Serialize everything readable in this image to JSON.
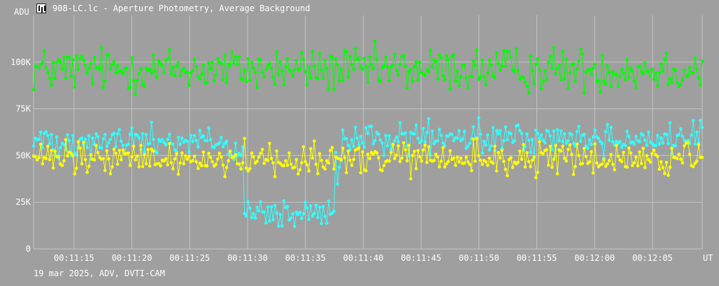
{
  "window": {
    "title": "908-LC.lc - Aperture Photometry, Average Background",
    "icon": "lightcurve-app-icon"
  },
  "footer": {
    "caption": "19 mar 2025, ADV, DVTI-CAM"
  },
  "colors": {
    "background": "#9f9f9f",
    "grid": "#c4c4c4",
    "text": "#ffffff",
    "green": "#00ff00",
    "cyan": "#33ffff",
    "yellow": "#ffff00"
  },
  "chart_data": {
    "type": "line",
    "title": "",
    "ylabel": "ADU",
    "xlabel": "UT",
    "ylim": [
      0,
      125000
    ],
    "yticks": [
      {
        "value": 0,
        "label": "0"
      },
      {
        "value": 25000,
        "label": "25K"
      },
      {
        "value": 50000,
        "label": "50K"
      },
      {
        "value": 75000,
        "label": "75K"
      },
      {
        "value": 100000,
        "label": "100K"
      }
    ],
    "xlim": [
      "00:11:11.5",
      "00:12:09.3"
    ],
    "xticks": [
      "00:11:15",
      "00:11:20",
      "00:11:25",
      "00:11:30",
      "00:11:35",
      "00:11:40",
      "00:11:45",
      "00:11:50",
      "00:11:55",
      "00:12:00",
      "00:12:05"
    ],
    "grid": true,
    "legend": "none",
    "sampling": "approximately 6.5 frames per second; 375 frames per series",
    "series": [
      {
        "color": "#00ff00",
        "description": "average roughly 96K ADU, scatter 85K-113K, constant through the record",
        "segments": [
          {
            "from": "00:11:11.5",
            "to": "00:12:09.3",
            "mean": 96000,
            "scatter": 6500
          }
        ]
      },
      {
        "color": "#33ffff",
        "description": "about 58K ADU, drops to about 18K between 00:11:29.7 and 00:11:37.5, then recovers to about 59K",
        "segments": [
          {
            "from": "00:11:11.5",
            "to": "00:11:28.2",
            "mean": 58000,
            "scatter": 4500
          },
          {
            "from": "00:11:28.2",
            "to": "00:11:29.7",
            "mean": 50000,
            "scatter": 4000
          },
          {
            "from": "00:11:29.7",
            "to": "00:11:37.5",
            "mean": 18000,
            "scatter": 4500
          },
          {
            "from": "00:11:37.5",
            "to": "00:11:38.1",
            "mean": 40000,
            "scatter": 8000
          },
          {
            "from": "00:11:38.1",
            "to": "00:12:09.3",
            "mean": 59000,
            "scatter": 4500
          }
        ]
      },
      {
        "color": "#ffff00",
        "description": "steady near 48K ADU with scatter 33K-59K",
        "segments": [
          {
            "from": "00:11:11.5",
            "to": "00:12:09.3",
            "mean": 48000,
            "scatter": 5000
          }
        ]
      }
    ]
  }
}
